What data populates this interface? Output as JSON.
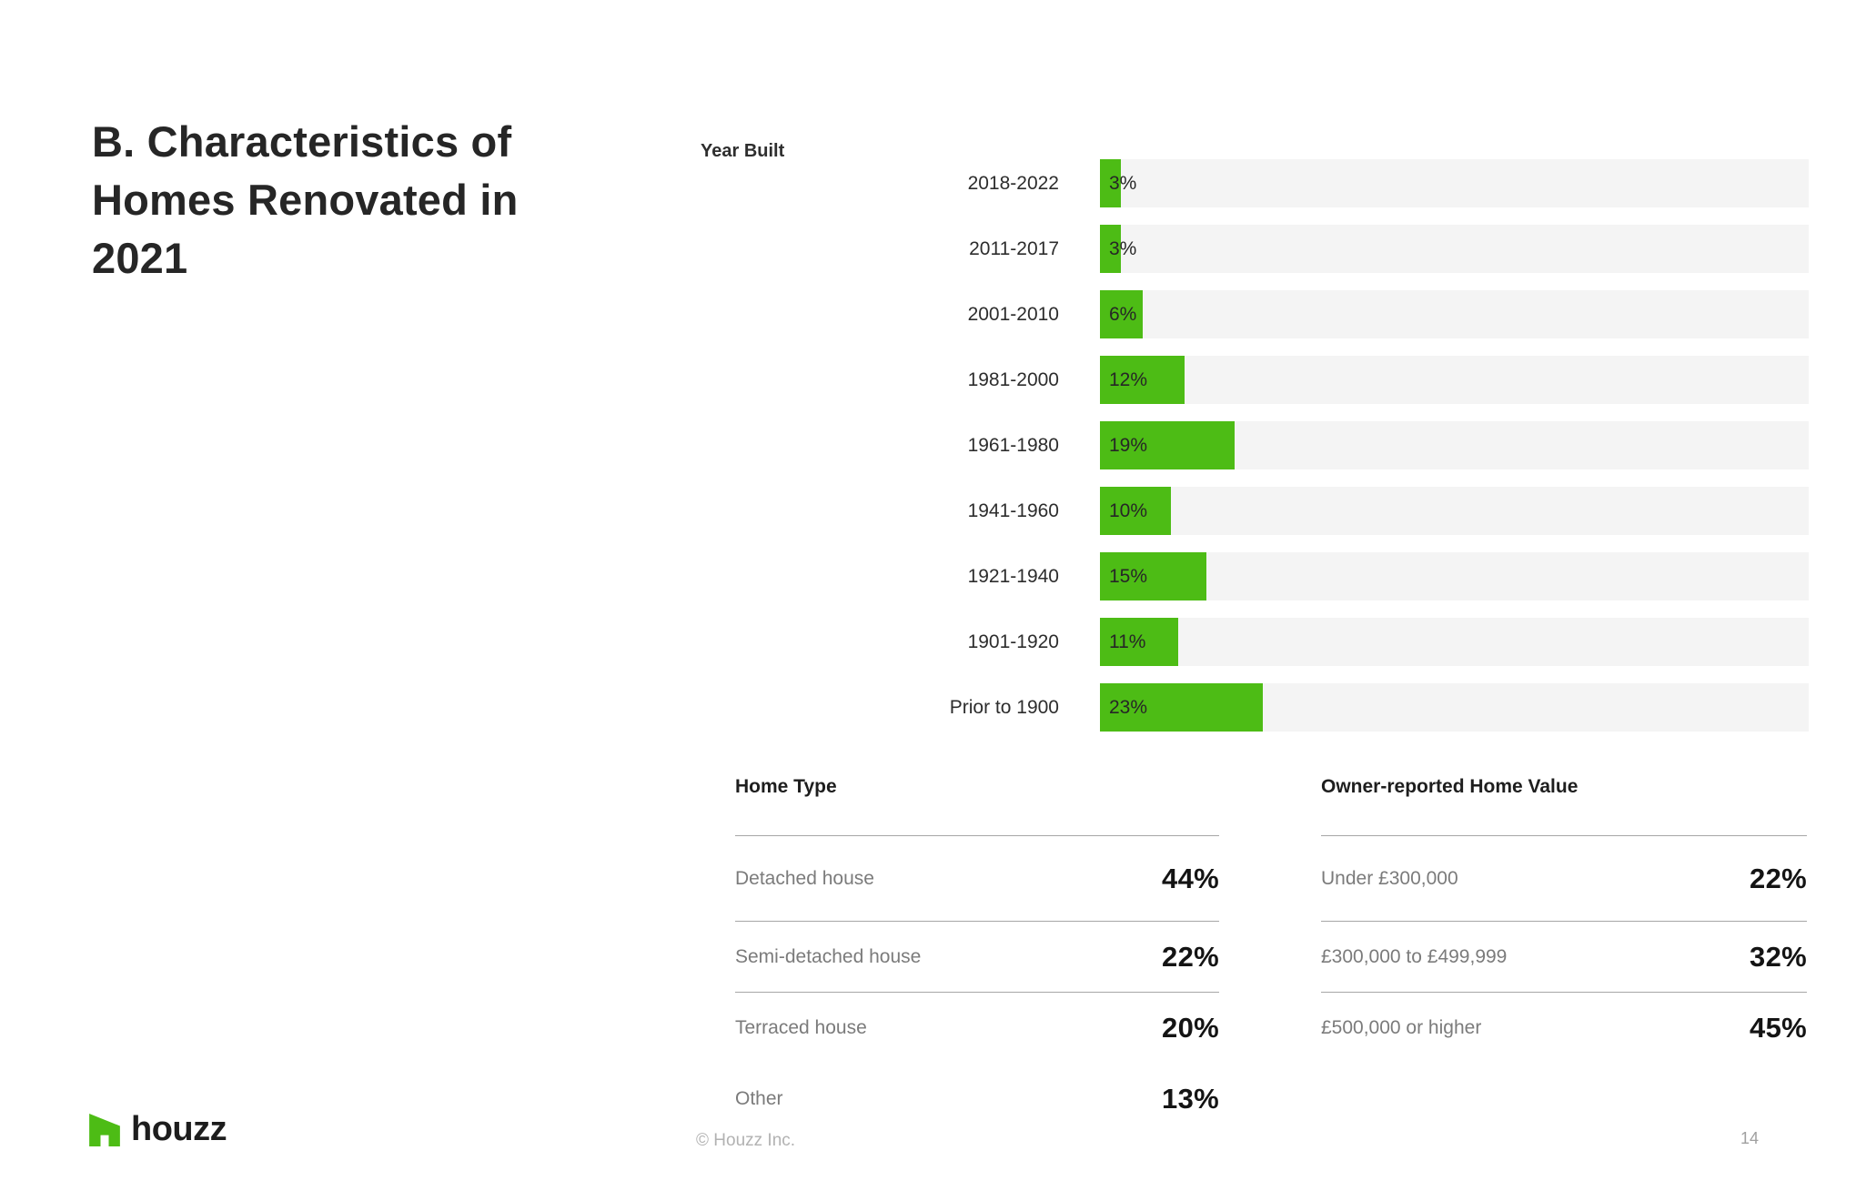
{
  "page": {
    "title": "B. Characteristics of Homes Renovated in 2021"
  },
  "chart_data": {
    "type": "bar",
    "orientation": "horizontal",
    "title": "Year Built",
    "categories": [
      "2018-2022",
      "2011-2017",
      "2001-2010",
      "1981-2000",
      "1961-1980",
      "1941-1960",
      "1921-1940",
      "1901-1920",
      "Prior to 1900"
    ],
    "values": [
      3,
      3,
      6,
      12,
      19,
      10,
      15,
      11,
      23
    ],
    "value_labels": [
      "3%",
      "3%",
      "6%",
      "12%",
      "19%",
      "10%",
      "15%",
      "11%",
      "23%"
    ],
    "unit": "percent",
    "xlim": [
      0,
      100
    ],
    "grid": false,
    "legend": false,
    "bar_color": "#4DBC15",
    "track_color": "#F4F4F4"
  },
  "tables": [
    {
      "title": "Home Type",
      "rows": [
        {
          "label": "Detached house",
          "value": "44%"
        },
        {
          "label": "Semi-detached house",
          "value": "22%"
        },
        {
          "label": "Terraced house",
          "value": "20%"
        },
        {
          "label": "Other",
          "value": "13%"
        }
      ]
    },
    {
      "title": "Owner-reported Home Value",
      "rows": [
        {
          "label": "Under £300,000",
          "value": "22%"
        },
        {
          "label": "£300,000 to £499,999",
          "value": "32%"
        },
        {
          "label": "£500,000 or higher",
          "value": "45%"
        }
      ]
    }
  ],
  "footer": {
    "logo_text": "houzz",
    "copyright": "© Houzz Inc.",
    "page_number": "14"
  },
  "colors": {
    "accent_green": "#4DBC15",
    "bar_track": "#F4F4F4",
    "text_dark": "#262626",
    "text_gray": "#7B7B7B",
    "divider": "#A6A6A6"
  }
}
